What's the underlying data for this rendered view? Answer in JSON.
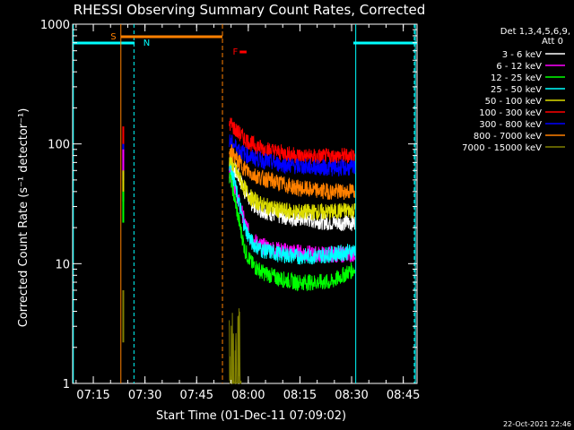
{
  "chart_data": {
    "type": "line",
    "title": "RHESSI Observing Summary Count Rates, Corrected",
    "xlabel": "Start Time (01-Dec-11 07:09:02)",
    "ylabel": "Corrected Count Rate (s⁻¹ detector⁻¹)",
    "yscale": "log",
    "ylim": [
      1,
      1000
    ],
    "xlim_minutes_after_0709": [
      0,
      100
    ],
    "x_ticks": [
      {
        "label": "07:15",
        "t": 6
      },
      {
        "label": "07:30",
        "t": 21
      },
      {
        "label": "07:45",
        "t": 36
      },
      {
        "label": "08:00",
        "t": 51
      },
      {
        "label": "08:15",
        "t": 66
      },
      {
        "label": "08:30",
        "t": 81
      },
      {
        "label": "08:45",
        "t": 96
      }
    ],
    "y_ticks": [
      {
        "label": "1",
        "v": 1
      },
      {
        "label": "10",
        "v": 10
      },
      {
        "label": "100",
        "v": 100
      },
      {
        "label": "1000",
        "v": 1000
      }
    ],
    "legend_header": [
      "Det 1,3,4,5,6,9,",
      "Att 0"
    ],
    "legend_position": "top-right",
    "series": [
      {
        "name": "3 - 6 keV",
        "color": "#ffffff",
        "values": [
          [
            45.5,
            75
          ],
          [
            46,
            70
          ],
          [
            48,
            55
          ],
          [
            50,
            40
          ],
          [
            52,
            32
          ],
          [
            55,
            28
          ],
          [
            60,
            25
          ],
          [
            65,
            24
          ],
          [
            70,
            23
          ],
          [
            75,
            22
          ],
          [
            80,
            22
          ],
          [
            82,
            22
          ]
        ]
      },
      {
        "name": "6 - 12 keV",
        "color": "#ff00ff",
        "values": [
          [
            45.5,
            60
          ],
          [
            46,
            55
          ],
          [
            48,
            35
          ],
          [
            50,
            22
          ],
          [
            52,
            16
          ],
          [
            55,
            14
          ],
          [
            60,
            13
          ],
          [
            65,
            12.5
          ],
          [
            70,
            12
          ],
          [
            75,
            12
          ],
          [
            80,
            12
          ],
          [
            82,
            12
          ]
        ]
      },
      {
        "name": "12 - 25 keV",
        "color": "#00ff00",
        "values": [
          [
            45.5,
            55
          ],
          [
            46,
            50
          ],
          [
            48,
            25
          ],
          [
            50,
            13
          ],
          [
            52,
            10
          ],
          [
            55,
            8.5
          ],
          [
            60,
            7.5
          ],
          [
            65,
            7
          ],
          [
            70,
            7
          ],
          [
            75,
            7
          ],
          [
            80,
            8.5
          ],
          [
            82,
            9
          ]
        ]
      },
      {
        "name": "25 - 50 keV",
        "color": "#00ffff",
        "values": [
          [
            45.5,
            70
          ],
          [
            46,
            65
          ],
          [
            48,
            35
          ],
          [
            50,
            20
          ],
          [
            52,
            15
          ],
          [
            55,
            13
          ],
          [
            60,
            12
          ],
          [
            65,
            11.5
          ],
          [
            70,
            11.5
          ],
          [
            75,
            12
          ],
          [
            80,
            12.5
          ],
          [
            82,
            13
          ]
        ]
      },
      {
        "name": "50 - 100 keV",
        "color": "#dddd00",
        "values": [
          [
            45.5,
            75
          ],
          [
            46,
            72
          ],
          [
            48,
            55
          ],
          [
            50,
            42
          ],
          [
            52,
            35
          ],
          [
            55,
            31
          ],
          [
            60,
            28
          ],
          [
            65,
            27
          ],
          [
            70,
            27
          ],
          [
            75,
            27
          ],
          [
            80,
            28
          ],
          [
            82,
            28
          ]
        ]
      },
      {
        "name": "100 - 300 keV",
        "color": "#ff0000",
        "values": [
          [
            45.5,
            150
          ],
          [
            46,
            145
          ],
          [
            48,
            125
          ],
          [
            50,
            110
          ],
          [
            52,
            100
          ],
          [
            55,
            92
          ],
          [
            60,
            85
          ],
          [
            65,
            80
          ],
          [
            70,
            78
          ],
          [
            75,
            78
          ],
          [
            80,
            80
          ],
          [
            82,
            80
          ]
        ]
      },
      {
        "name": "300 - 800 keV",
        "color": "#0000ff",
        "values": [
          [
            45.5,
            105
          ],
          [
            46,
            103
          ],
          [
            48,
            92
          ],
          [
            50,
            82
          ],
          [
            52,
            77
          ],
          [
            55,
            73
          ],
          [
            60,
            68
          ],
          [
            65,
            65
          ],
          [
            70,
            64
          ],
          [
            75,
            63
          ],
          [
            80,
            63
          ],
          [
            82,
            63
          ]
        ]
      },
      {
        "name": "800 - 7000 keV",
        "color": "#ff8000",
        "values": [
          [
            45.5,
            90
          ],
          [
            46,
            86
          ],
          [
            48,
            72
          ],
          [
            50,
            62
          ],
          [
            52,
            56
          ],
          [
            55,
            52
          ],
          [
            60,
            47
          ],
          [
            65,
            43
          ],
          [
            70,
            41
          ],
          [
            75,
            40
          ],
          [
            80,
            40
          ],
          [
            82,
            41
          ]
        ]
      },
      {
        "name": "7000 - 15000 keV",
        "color": "#808000",
        "values": [
          [
            45.5,
            1.6
          ],
          [
            46.5,
            1.5
          ],
          [
            47,
            1.9
          ],
          [
            47.5,
            1.3
          ],
          [
            48,
            1.8
          ],
          [
            48.5,
            1.4
          ],
          [
            49,
            1.1
          ]
        ]
      }
    ],
    "annotations": [
      {
        "label": "S",
        "color": "#ff8000",
        "t": 20
      },
      {
        "label": "N",
        "color": "#00ffff",
        "t": 23
      },
      {
        "label": "F",
        "color": "#ff0000",
        "t": 47
      }
    ],
    "timestamp": "22-Oct-2021 22:46"
  }
}
